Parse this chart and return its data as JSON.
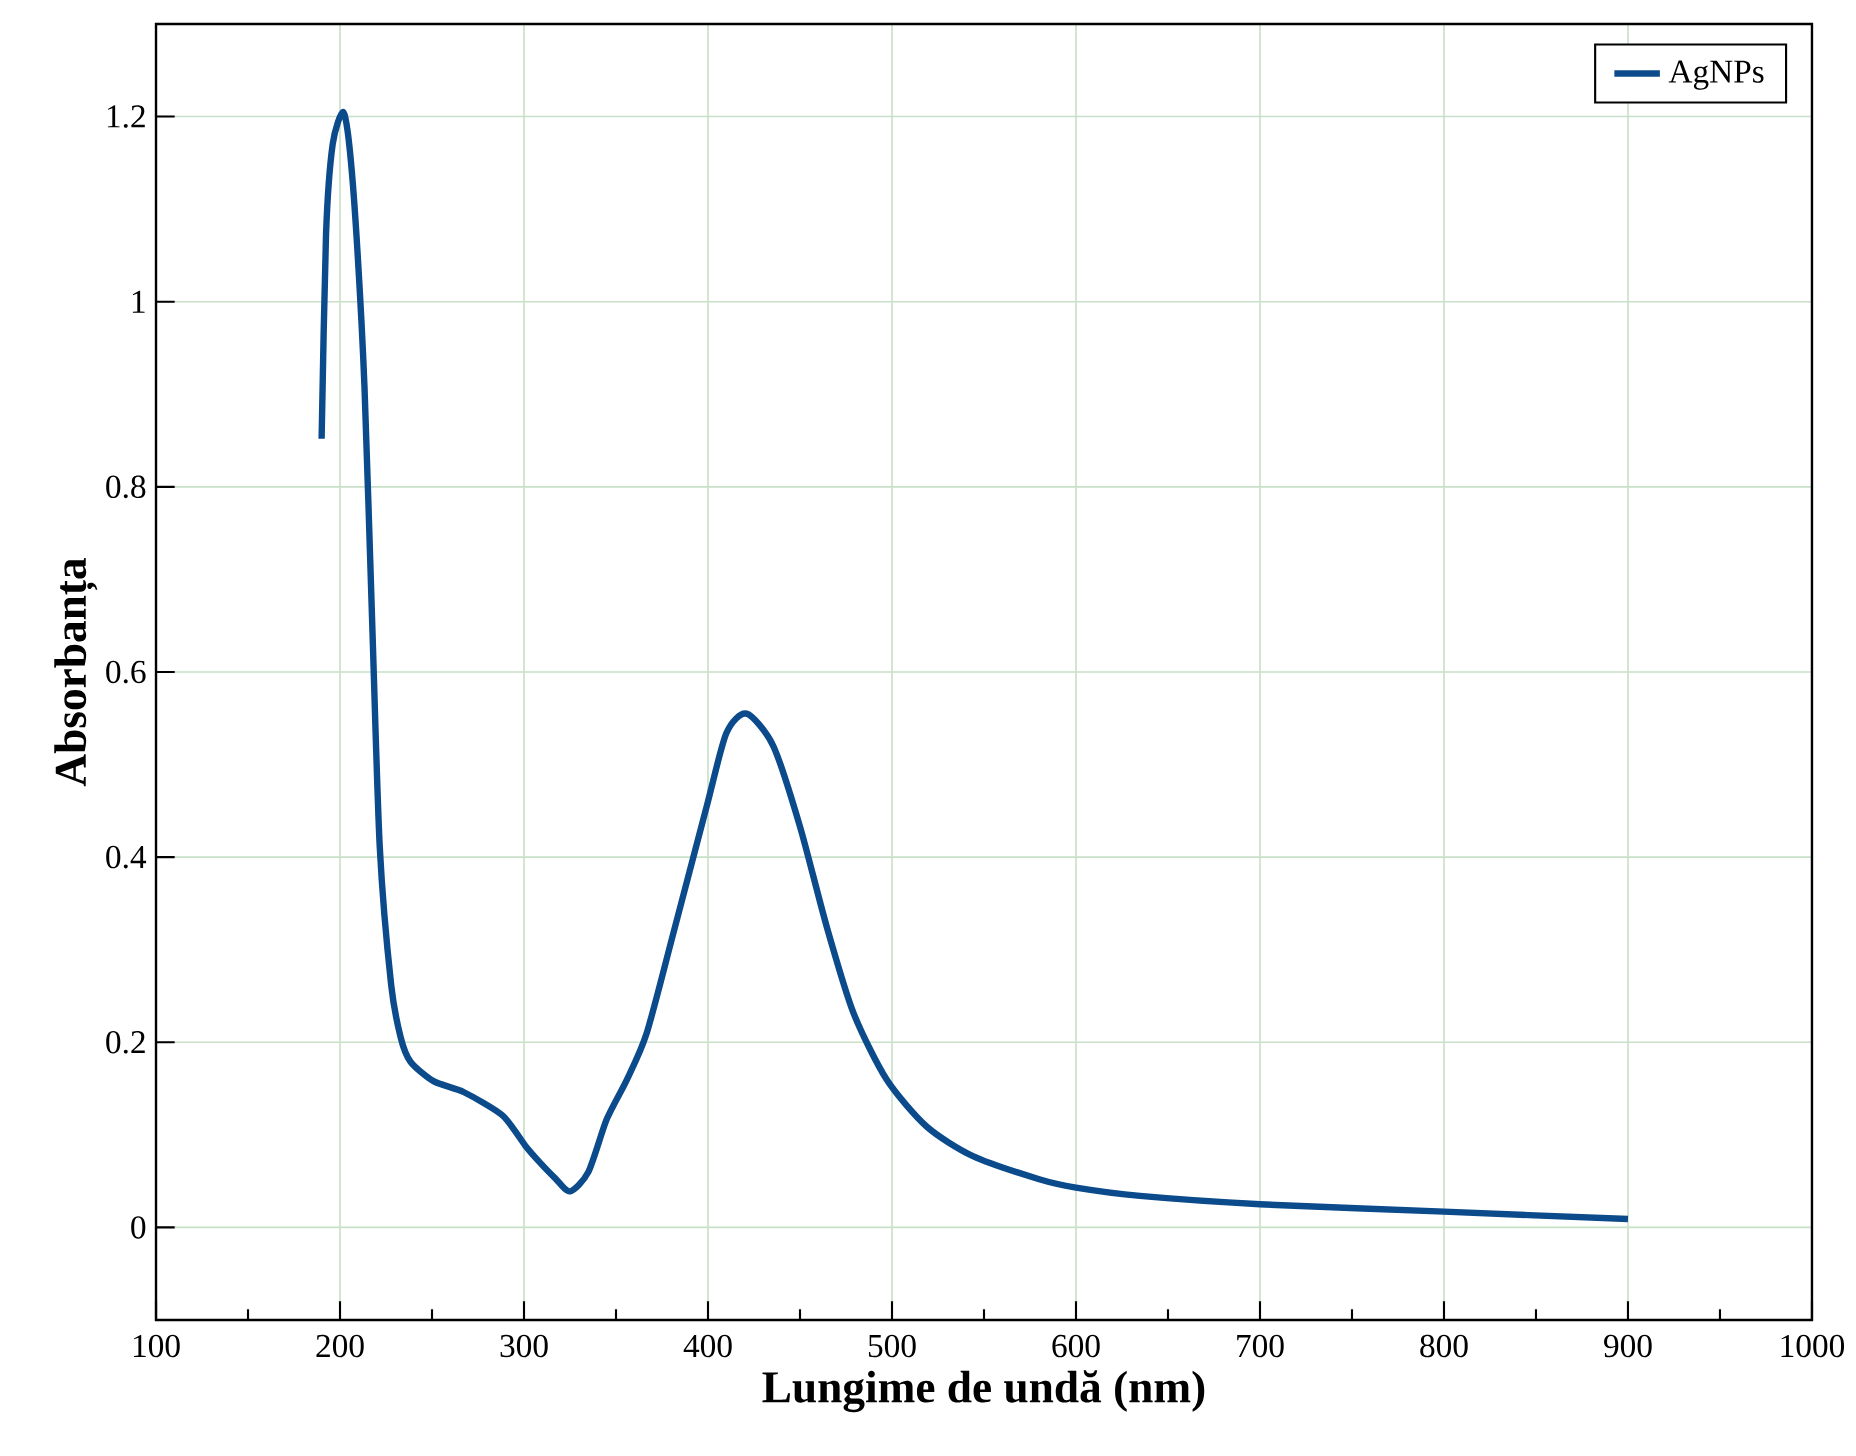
{
  "chart_data": {
    "type": "line",
    "xlabel": "Lungime de undă (nm)",
    "ylabel": "Absorbanța",
    "xlim": [
      100,
      1000
    ],
    "ylim": [
      -0.1,
      1.3
    ],
    "xticks": [
      100,
      200,
      300,
      400,
      500,
      600,
      700,
      800,
      900,
      1000
    ],
    "yticks": [
      0,
      0.2,
      0.4,
      0.6,
      0.8,
      1,
      1.2
    ],
    "grid": true,
    "legend": "top right",
    "line_style": "solid",
    "marker": "none",
    "series": [
      {
        "name": "AgNPs",
        "color": "#0b4a8b",
        "x": [
          190,
          192.4,
          196,
          201.6,
          205,
          209,
          213.3,
          217.4,
          221.6,
          227.8,
          233,
          238.3,
          250.8,
          267.4,
          288.3,
          300.8,
          308.7,
          317,
          325,
          335,
          345,
          356,
          366.7,
          381.2,
          399.3,
          410,
          421,
          435.5,
          450,
          464.5,
          479,
          497,
          518.8,
          544,
          580,
          600,
          634.8,
          700,
          800,
          900
        ],
        "values": [
          0.852,
          1.073,
          1.17,
          1.205,
          1.17,
          1.07,
          0.908,
          0.659,
          0.411,
          0.262,
          0.205,
          0.179,
          0.158,
          0.146,
          0.121,
          0.088,
          0.07,
          0.053,
          0.039,
          0.06,
          0.117,
          0.16,
          0.21,
          0.318,
          0.455,
          0.534,
          0.555,
          0.52,
          0.433,
          0.325,
          0.232,
          0.16,
          0.109,
          0.077,
          0.052,
          0.043,
          0.034,
          0.025,
          0.017,
          0.009
        ]
      }
    ]
  }
}
